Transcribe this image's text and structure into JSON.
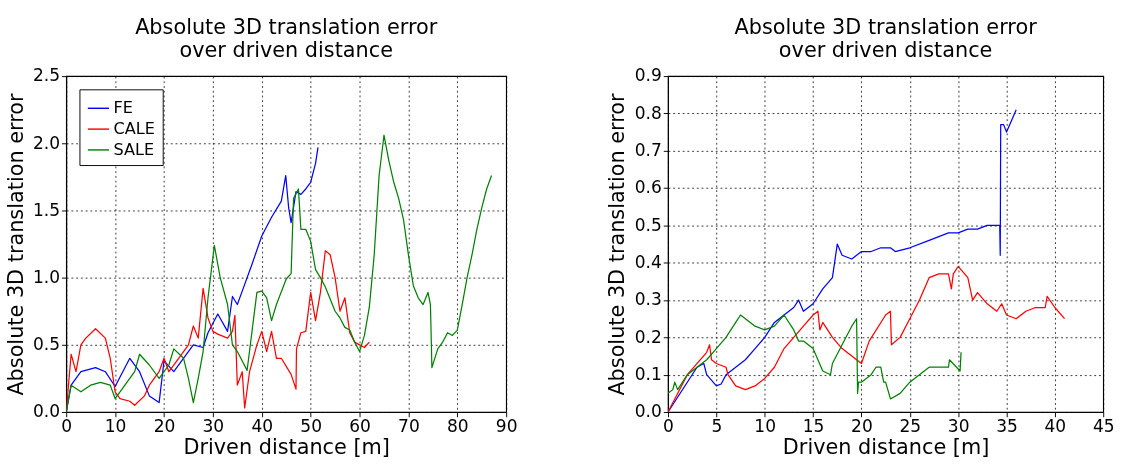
{
  "chart_data": [
    {
      "type": "line",
      "title": "Absolute 3D translation error\nover driven distance",
      "xlabel": "Driven distance [m]",
      "ylabel": "Absolute 3D translation error",
      "xlim": [
        0,
        90
      ],
      "xticks": [
        0,
        10,
        20,
        30,
        40,
        50,
        60,
        70,
        80,
        90
      ],
      "ylim": [
        0,
        2.5
      ],
      "yticks": [
        {
          "value": 0,
          "label": "0.0"
        },
        {
          "value": 0.5,
          "label": "0.5"
        },
        {
          "value": 1,
          "label": "1.0"
        },
        {
          "value": 1.5,
          "label": "1.5"
        },
        {
          "value": 2,
          "label": "2.0"
        },
        {
          "value": 2.5,
          "label": "2.5"
        }
      ],
      "grid": true,
      "legend": "top left",
      "line_style": "solid",
      "marker": "none",
      "series": [
        {
          "name": "FE",
          "color": "#0000ff",
          "x": [
            0,
            1,
            3,
            6,
            8,
            10,
            13,
            15,
            17,
            19,
            20,
            22,
            26,
            28,
            29,
            31,
            33,
            34,
            35,
            36,
            38,
            40,
            42,
            44,
            44.9,
            45.5,
            46,
            47,
            48,
            49,
            50,
            51,
            51.5
          ],
          "values": [
            0,
            0.2,
            0.3,
            0.33,
            0.3,
            0.19,
            0.4,
            0.3,
            0.12,
            0.07,
            0.38,
            0.3,
            0.5,
            0.48,
            0.59,
            0.73,
            0.6,
            0.86,
            0.8,
            0.9,
            1.1,
            1.31,
            1.45,
            1.57,
            1.76,
            1.52,
            1.41,
            1.64,
            1.62,
            1.66,
            1.71,
            1.85,
            1.97
          ]
        },
        {
          "name": "CALE",
          "color": "#ff0000",
          "x": [
            0,
            1,
            2,
            3,
            4,
            6,
            8,
            9,
            10,
            11,
            13,
            14,
            16,
            17,
            19,
            20,
            21,
            23,
            25,
            26,
            27,
            28,
            29,
            30,
            31,
            33,
            34,
            34.5,
            35,
            36,
            36.5,
            37.5,
            39,
            40,
            41,
            42,
            43,
            44,
            46,
            47,
            47.1,
            48,
            49,
            50,
            51,
            52,
            53,
            54,
            55,
            56,
            57,
            58,
            59,
            60,
            61,
            62
          ],
          "values": [
            0,
            0.43,
            0.3,
            0.5,
            0.55,
            0.62,
            0.55,
            0.4,
            0.15,
            0.1,
            0.08,
            0.05,
            0.12,
            0.2,
            0.3,
            0.4,
            0.3,
            0.4,
            0.5,
            0.64,
            0.55,
            0.92,
            0.7,
            0.6,
            0.58,
            0.55,
            0.6,
            0.72,
            0.2,
            0.3,
            0.03,
            0.3,
            0.5,
            0.6,
            0.45,
            0.6,
            0.4,
            0.4,
            0.28,
            0.17,
            0.47,
            0.59,
            0.6,
            0.89,
            0.68,
            0.89,
            1.2,
            1.17,
            1.0,
            0.75,
            0.85,
            0.59,
            0.52,
            0.5,
            0.48,
            0.52
          ]
        },
        {
          "name": "SALE",
          "color": "#008000",
          "x": [
            0,
            1,
            3,
            5,
            7,
            9,
            10,
            12,
            14,
            15,
            17,
            19,
            21,
            22,
            24,
            25,
            26,
            27,
            28,
            29,
            30.3,
            31.5,
            33,
            34,
            35,
            37,
            38,
            39,
            40,
            41,
            42,
            43,
            45,
            46,
            46.5,
            47.5,
            48,
            49,
            50,
            51,
            52,
            53,
            55,
            56,
            57,
            58,
            59,
            60,
            61,
            62,
            63,
            64,
            65,
            66,
            67,
            68,
            69,
            70,
            71,
            72,
            73,
            74,
            74.5,
            74.8,
            76,
            77,
            78,
            79,
            80,
            81,
            82,
            83,
            84,
            85,
            86,
            87
          ],
          "values": [
            0,
            0.2,
            0.15,
            0.2,
            0.22,
            0.2,
            0.1,
            0.2,
            0.3,
            0.43,
            0.35,
            0.25,
            0.35,
            0.47,
            0.4,
            0.25,
            0.07,
            0.25,
            0.45,
            0.85,
            1.24,
            1.0,
            0.8,
            0.5,
            0.45,
            0.31,
            0.6,
            0.89,
            0.9,
            0.85,
            0.68,
            0.8,
            0.99,
            1.03,
            1.59,
            1.66,
            1.36,
            1.36,
            1.27,
            1.06,
            1.0,
            0.93,
            0.75,
            0.7,
            0.63,
            0.61,
            0.52,
            0.45,
            0.57,
            0.78,
            1.17,
            1.76,
            2.06,
            1.87,
            1.71,
            1.59,
            1.43,
            1.17,
            0.94,
            0.85,
            0.8,
            0.89,
            0.8,
            0.33,
            0.47,
            0.52,
            0.59,
            0.57,
            0.61,
            0.8,
            1.0,
            1.17,
            1.36,
            1.52,
            1.66,
            1.76
          ]
        }
      ]
    },
    {
      "type": "line",
      "title": "Absolute 3D translation error\nover driven distance",
      "xlabel": "Driven distance [m]",
      "ylabel": "Absolute 3D translation error",
      "xlim": [
        0,
        45
      ],
      "xticks": [
        0,
        5,
        10,
        15,
        20,
        25,
        30,
        35,
        40,
        45
      ],
      "ylim": [
        0,
        0.9
      ],
      "yticks": [
        {
          "value": 0,
          "label": "0.0"
        },
        0.1,
        0.2,
        0.3,
        0.4,
        0.5,
        0.6,
        0.7,
        0.8,
        0.9
      ],
      "grid": true,
      "legend": "top left",
      "line_style": "solid",
      "marker": "none",
      "series": [
        {
          "name": "FE",
          "color": "#0000ff",
          "x": [
            0,
            3,
            3.7,
            4,
            5,
            5.5,
            6,
            8,
            9,
            10,
            11,
            12,
            13,
            13.5,
            14,
            15,
            16,
            17,
            17.5,
            18,
            19,
            20,
            21,
            22,
            23,
            23.5,
            25,
            27,
            28,
            29,
            30,
            31,
            32,
            33,
            34,
            34.3,
            34.35,
            34.4,
            34.7,
            35,
            35.5,
            36
          ],
          "values": [
            0,
            0.12,
            0.13,
            0.1,
            0.07,
            0.075,
            0.1,
            0.14,
            0.17,
            0.2,
            0.24,
            0.26,
            0.28,
            0.3,
            0.27,
            0.29,
            0.33,
            0.36,
            0.45,
            0.42,
            0.41,
            0.43,
            0.43,
            0.44,
            0.44,
            0.43,
            0.44,
            0.46,
            0.47,
            0.48,
            0.48,
            0.49,
            0.49,
            0.5,
            0.5,
            0.5,
            0.42,
            0.77,
            0.77,
            0.75,
            0.78,
            0.81
          ]
        },
        {
          "name": "CALE",
          "color": "#ff0000",
          "x": [
            0,
            2,
            4,
            4.3,
            4.5,
            5,
            6,
            6.2,
            7,
            8,
            9,
            10,
            11,
            12,
            13,
            14,
            15,
            15.5,
            15.7,
            16,
            17,
            18,
            19,
            20,
            20.8,
            22.5,
            23,
            23.1,
            24,
            25,
            26,
            27,
            28,
            29,
            29.3,
            29.5,
            30,
            31,
            31.5,
            32,
            33,
            34,
            34.5,
            35,
            36,
            37,
            38,
            39,
            39.2,
            40,
            41
          ],
          "values": [
            0,
            0.1,
            0.16,
            0.18,
            0.14,
            0.13,
            0.12,
            0.1,
            0.07,
            0.06,
            0.07,
            0.09,
            0.12,
            0.17,
            0.2,
            0.23,
            0.26,
            0.27,
            0.22,
            0.24,
            0.2,
            0.17,
            0.15,
            0.13,
            0.19,
            0.26,
            0.27,
            0.18,
            0.2,
            0.25,
            0.3,
            0.36,
            0.37,
            0.37,
            0.33,
            0.37,
            0.39,
            0.36,
            0.3,
            0.32,
            0.29,
            0.27,
            0.29,
            0.26,
            0.25,
            0.27,
            0.28,
            0.28,
            0.31,
            0.28,
            0.25
          ]
        },
        {
          "name": "SALE",
          "color": "#008000",
          "x": [
            0,
            0.5,
            0.7,
            1,
            2,
            3,
            4,
            5,
            6,
            7,
            7.5,
            8,
            9,
            10,
            11,
            12,
            13,
            13.5,
            14,
            15,
            16,
            16.8,
            17,
            18,
            19,
            19.5,
            19.6,
            19.7,
            20,
            21,
            21.5,
            22,
            22.3,
            22.5,
            23,
            24,
            25,
            26,
            27,
            28,
            29,
            29.1,
            30.2,
            30.3
          ],
          "values": [
            0.05,
            0.06,
            0.08,
            0.06,
            0.1,
            0.12,
            0.14,
            0.17,
            0.2,
            0.24,
            0.26,
            0.25,
            0.23,
            0.22,
            0.23,
            0.26,
            0.22,
            0.19,
            0.19,
            0.17,
            0.11,
            0.1,
            0.13,
            0.18,
            0.23,
            0.25,
            0.05,
            0.08,
            0.08,
            0.1,
            0.12,
            0.12,
            0.08,
            0.08,
            0.035,
            0.05,
            0.08,
            0.1,
            0.12,
            0.12,
            0.12,
            0.14,
            0.11,
            0.16
          ]
        }
      ]
    }
  ]
}
